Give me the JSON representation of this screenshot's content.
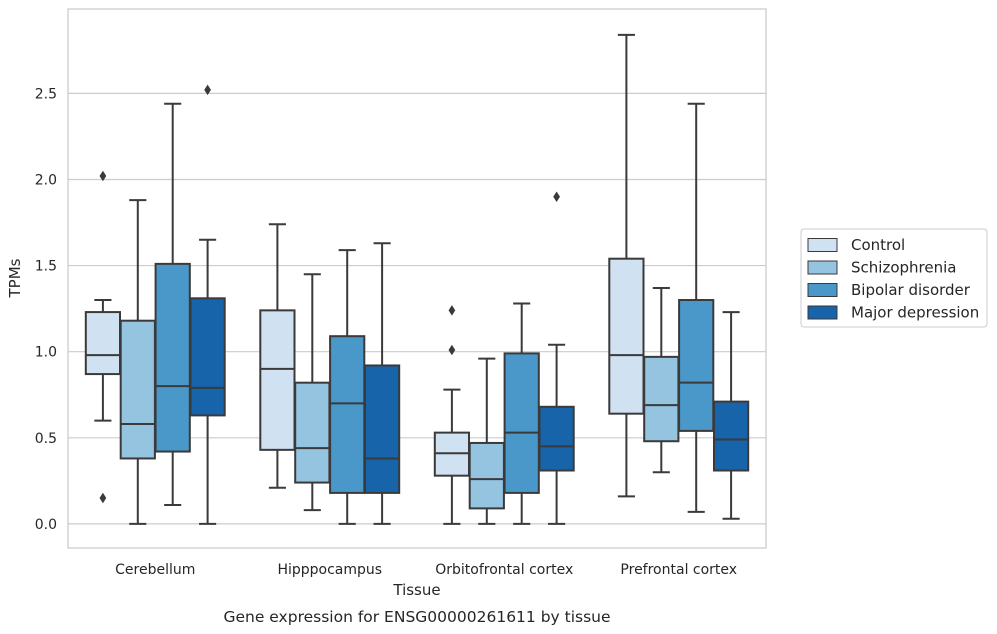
{
  "chart_data": {
    "type": "boxplot",
    "title": "",
    "caption": "Gene expression for ENSG00000261611 by tissue",
    "xlabel": "Tissue",
    "ylabel": "TPMs",
    "ylim": [
      -0.14,
      2.99
    ],
    "yticks": [
      "0.0",
      "0.5",
      "1.0",
      "1.5",
      "2.0",
      "2.5"
    ],
    "ytick_values": [
      0,
      0.5,
      1.0,
      1.5,
      2.0,
      2.5
    ],
    "grid": "horizontal",
    "legend_position": "right",
    "categories": [
      "Cerebellum",
      "Hipppocampus",
      "Orbitofrontal cortex",
      "Prefrontal cortex"
    ],
    "series": [
      {
        "name": "Control",
        "color": "#d0e1f2",
        "boxes": [
          {
            "whisker_low": 0.6,
            "q1": 0.87,
            "median": 0.98,
            "q3": 1.23,
            "whisker_high": 1.3,
            "outliers": [
              2.02,
              0.15
            ]
          },
          {
            "whisker_low": 0.21,
            "q1": 0.43,
            "median": 0.9,
            "q3": 1.24,
            "whisker_high": 1.74,
            "outliers": []
          },
          {
            "whisker_low": 0.0,
            "q1": 0.28,
            "median": 0.41,
            "q3": 0.53,
            "whisker_high": 0.78,
            "outliers": [
              1.24,
              1.01
            ]
          },
          {
            "whisker_low": 0.16,
            "q1": 0.64,
            "median": 0.98,
            "q3": 1.54,
            "whisker_high": 2.84,
            "outliers": []
          }
        ]
      },
      {
        "name": "Schizophrenia",
        "color": "#94c4df",
        "boxes": [
          {
            "whisker_low": 0.0,
            "q1": 0.38,
            "median": 0.58,
            "q3": 1.18,
            "whisker_high": 1.88,
            "outliers": []
          },
          {
            "whisker_low": 0.08,
            "q1": 0.24,
            "median": 0.44,
            "q3": 0.82,
            "whisker_high": 1.45,
            "outliers": []
          },
          {
            "whisker_low": 0.0,
            "q1": 0.09,
            "median": 0.26,
            "q3": 0.47,
            "whisker_high": 0.96,
            "outliers": []
          },
          {
            "whisker_low": 0.3,
            "q1": 0.48,
            "median": 0.69,
            "q3": 0.97,
            "whisker_high": 1.37,
            "outliers": []
          }
        ]
      },
      {
        "name": "Bipolar disorder",
        "color": "#4a98c9",
        "boxes": [
          {
            "whisker_low": 0.11,
            "q1": 0.42,
            "median": 0.8,
            "q3": 1.51,
            "whisker_high": 2.44,
            "outliers": []
          },
          {
            "whisker_low": 0.0,
            "q1": 0.18,
            "median": 0.7,
            "q3": 1.09,
            "whisker_high": 1.59,
            "outliers": []
          },
          {
            "whisker_low": 0.0,
            "q1": 0.18,
            "median": 0.53,
            "q3": 0.99,
            "whisker_high": 1.28,
            "outliers": []
          },
          {
            "whisker_low": 0.07,
            "q1": 0.54,
            "median": 0.82,
            "q3": 1.3,
            "whisker_high": 2.44,
            "outliers": []
          }
        ]
      },
      {
        "name": "Major depression",
        "color": "#1764ab",
        "boxes": [
          {
            "whisker_low": 0.0,
            "q1": 0.63,
            "median": 0.79,
            "q3": 1.31,
            "whisker_high": 1.65,
            "outliers": [
              2.52
            ]
          },
          {
            "whisker_low": 0.0,
            "q1": 0.18,
            "median": 0.38,
            "q3": 0.92,
            "whisker_high": 1.63,
            "outliers": []
          },
          {
            "whisker_low": 0.0,
            "q1": 0.31,
            "median": 0.45,
            "q3": 0.68,
            "whisker_high": 1.04,
            "outliers": [
              1.9
            ]
          },
          {
            "whisker_low": 0.03,
            "q1": 0.31,
            "median": 0.49,
            "q3": 0.71,
            "whisker_high": 1.23,
            "outliers": []
          }
        ]
      }
    ]
  }
}
